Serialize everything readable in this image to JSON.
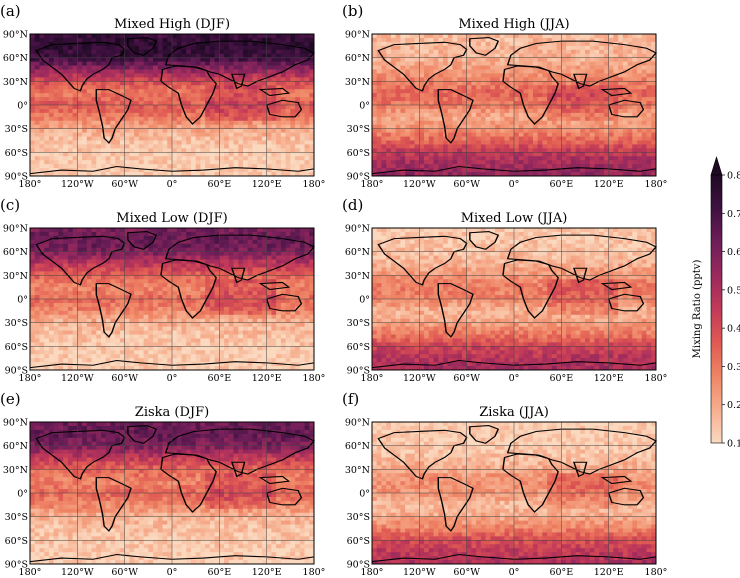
{
  "chart_data": {
    "type": "heatmap",
    "colorbar": {
      "label": "Mixing Ratio (pptv)",
      "min": 0.1,
      "max": 0.8,
      "ticks": [
        "0.1",
        "0.2",
        "0.3",
        "0.4",
        "0.5",
        "0.6",
        "0.7",
        "0.8"
      ],
      "extend": "max",
      "colors": [
        "#fbd9bf",
        "#f6ae8e",
        "#ef8565",
        "#e05a53",
        "#c23a58",
        "#9a2a5e",
        "#6e1e58",
        "#3f1140",
        "#1f0a24"
      ]
    },
    "x_ticks": [
      "180°",
      "120°W",
      "60°W",
      "0°",
      "60°E",
      "120°E",
      "180°"
    ],
    "y_ticks": [
      "90°N",
      "60°N",
      "30°N",
      "0°",
      "30°S",
      "60°S",
      "90°S"
    ],
    "xlim": [
      -180,
      180
    ],
    "ylim": [
      -90,
      90
    ],
    "grid": true,
    "panels": [
      {
        "letter": "(a)",
        "title": "Mixed  High (DJF)",
        "season": "DJF",
        "zonal_profile": [
          {
            "lat": -90,
            "value": 0.12
          },
          {
            "lat": -60,
            "value": 0.13
          },
          {
            "lat": -45,
            "value": 0.15
          },
          {
            "lat": -30,
            "value": 0.2
          },
          {
            "lat": -15,
            "value": 0.3
          },
          {
            "lat": 0,
            "value": 0.36
          },
          {
            "lat": 15,
            "value": 0.3
          },
          {
            "lat": 30,
            "value": 0.4
          },
          {
            "lat": 45,
            "value": 0.56
          },
          {
            "lat": 60,
            "value": 0.72
          },
          {
            "lat": 75,
            "value": 0.76
          },
          {
            "lat": 90,
            "value": 0.72
          }
        ]
      },
      {
        "letter": "(b)",
        "title": "Mixed  High (JJA)",
        "season": "JJA",
        "zonal_profile": [
          {
            "lat": -90,
            "value": 0.56
          },
          {
            "lat": -75,
            "value": 0.52
          },
          {
            "lat": -60,
            "value": 0.46
          },
          {
            "lat": -45,
            "value": 0.34
          },
          {
            "lat": -30,
            "value": 0.25
          },
          {
            "lat": -15,
            "value": 0.2
          },
          {
            "lat": 0,
            "value": 0.3
          },
          {
            "lat": 15,
            "value": 0.34
          },
          {
            "lat": 30,
            "value": 0.28
          },
          {
            "lat": 45,
            "value": 0.22
          },
          {
            "lat": 60,
            "value": 0.18
          },
          {
            "lat": 90,
            "value": 0.16
          }
        ]
      },
      {
        "letter": "(c)",
        "title": "Mixed  Low (DJF)",
        "season": "DJF",
        "zonal_profile": [
          {
            "lat": -90,
            "value": 0.12
          },
          {
            "lat": -60,
            "value": 0.13
          },
          {
            "lat": -45,
            "value": 0.15
          },
          {
            "lat": -30,
            "value": 0.18
          },
          {
            "lat": -15,
            "value": 0.27
          },
          {
            "lat": 0,
            "value": 0.33
          },
          {
            "lat": 15,
            "value": 0.27
          },
          {
            "lat": 30,
            "value": 0.35
          },
          {
            "lat": 45,
            "value": 0.47
          },
          {
            "lat": 60,
            "value": 0.6
          },
          {
            "lat": 75,
            "value": 0.64
          },
          {
            "lat": 90,
            "value": 0.6
          }
        ]
      },
      {
        "letter": "(d)",
        "title": "Mixed  Low (JJA)",
        "season": "JJA",
        "zonal_profile": [
          {
            "lat": -90,
            "value": 0.52
          },
          {
            "lat": -75,
            "value": 0.48
          },
          {
            "lat": -60,
            "value": 0.42
          },
          {
            "lat": -45,
            "value": 0.3
          },
          {
            "lat": -30,
            "value": 0.22
          },
          {
            "lat": -15,
            "value": 0.18
          },
          {
            "lat": 0,
            "value": 0.27
          },
          {
            "lat": 15,
            "value": 0.3
          },
          {
            "lat": 30,
            "value": 0.24
          },
          {
            "lat": 45,
            "value": 0.18
          },
          {
            "lat": 60,
            "value": 0.15
          },
          {
            "lat": 90,
            "value": 0.13
          }
        ]
      },
      {
        "letter": "(e)",
        "title": "Ziska (DJF)",
        "season": "DJF",
        "zonal_profile": [
          {
            "lat": -90,
            "value": 0.12
          },
          {
            "lat": -60,
            "value": 0.13
          },
          {
            "lat": -45,
            "value": 0.15
          },
          {
            "lat": -30,
            "value": 0.18
          },
          {
            "lat": -15,
            "value": 0.27
          },
          {
            "lat": 0,
            "value": 0.34
          },
          {
            "lat": 15,
            "value": 0.27
          },
          {
            "lat": 30,
            "value": 0.34
          },
          {
            "lat": 45,
            "value": 0.46
          },
          {
            "lat": 60,
            "value": 0.6
          },
          {
            "lat": 75,
            "value": 0.64
          },
          {
            "lat": 90,
            "value": 0.62
          }
        ]
      },
      {
        "letter": "(f)",
        "title": "Ziska (JJA)",
        "season": "JJA",
        "zonal_profile": [
          {
            "lat": -90,
            "value": 0.5
          },
          {
            "lat": -75,
            "value": 0.46
          },
          {
            "lat": -60,
            "value": 0.4
          },
          {
            "lat": -45,
            "value": 0.28
          },
          {
            "lat": -30,
            "value": 0.2
          },
          {
            "lat": -15,
            "value": 0.16
          },
          {
            "lat": 0,
            "value": 0.24
          },
          {
            "lat": 15,
            "value": 0.26
          },
          {
            "lat": 30,
            "value": 0.2
          },
          {
            "lat": 45,
            "value": 0.15
          },
          {
            "lat": 60,
            "value": 0.13
          },
          {
            "lat": 90,
            "value": 0.12
          }
        ]
      }
    ]
  }
}
